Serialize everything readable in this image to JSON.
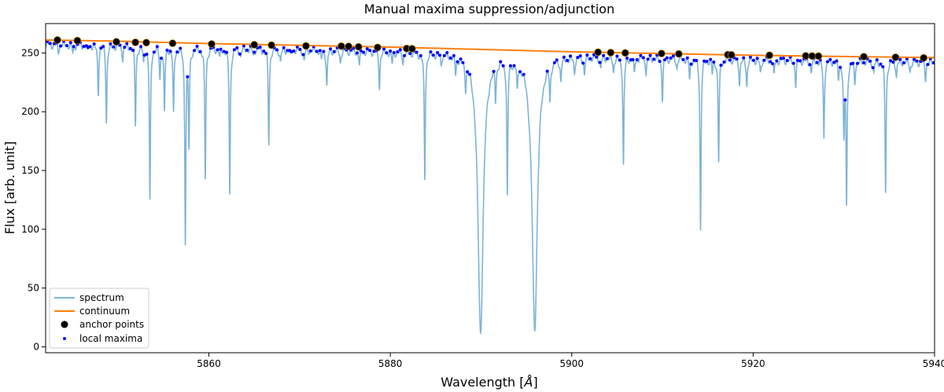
{
  "chart_data": {
    "type": "line",
    "title": "Manual maxima suppression/adjunction",
    "xlabel": "Wavelength [Å]",
    "xlabel_text": "Wavelength [",
    "xlabel_unit": "Å",
    "xlabel_close": "]",
    "ylabel": "Flux [arb. unit]",
    "xlim": [
      5842,
      5940
    ],
    "ylim": [
      -5,
      275
    ],
    "x_ticks": [
      5860,
      5880,
      5900,
      5920,
      5940
    ],
    "y_ticks": [
      0,
      50,
      100,
      150,
      200,
      250
    ],
    "grid": false,
    "legend_position": "lower-left",
    "colors": {
      "spectrum": "#7eb3d8",
      "continuum": "#ff7f0e",
      "anchor": "#000000",
      "anchor_edge": "#b8860b",
      "maxima": "#0000ff"
    },
    "legend": [
      "spectrum",
      "continuum",
      "anchor points",
      "local maxima"
    ],
    "continuum": {
      "x": [
        5842,
        5850,
        5860,
        5870,
        5880,
        5890,
        5900,
        5910,
        5920,
        5930,
        5940
      ],
      "y": [
        261,
        260,
        258,
        256.5,
        255,
        253,
        251,
        249.5,
        248,
        247,
        246
      ]
    },
    "spectrum_absorption_lines": [
      {
        "x": 5843.4,
        "depth": 6
      },
      {
        "x": 5845.0,
        "depth": 7
      },
      {
        "x": 5846.6,
        "depth": 6
      },
      {
        "x": 5847.8,
        "depth": 40
      },
      {
        "x": 5848.7,
        "depth": 64
      },
      {
        "x": 5850.5,
        "depth": 10
      },
      {
        "x": 5851.9,
        "depth": 67
      },
      {
        "x": 5852.8,
        "depth": 13
      },
      {
        "x": 5853.5,
        "depth": 132
      },
      {
        "x": 5854.6,
        "depth": 26
      },
      {
        "x": 5855.1,
        "depth": 55
      },
      {
        "x": 5856.1,
        "depth": 57
      },
      {
        "x": 5857.4,
        "depth": 162
      },
      {
        "x": 5857.8,
        "depth": 82
      },
      {
        "x": 5859.6,
        "depth": 111
      },
      {
        "x": 5861.2,
        "depth": 8
      },
      {
        "x": 5862.3,
        "depth": 124
      },
      {
        "x": 5863.5,
        "depth": 6
      },
      {
        "x": 5864.9,
        "depth": 5
      },
      {
        "x": 5866.6,
        "depth": 80
      },
      {
        "x": 5867.9,
        "depth": 11
      },
      {
        "x": 5869.0,
        "depth": 6
      },
      {
        "x": 5870.5,
        "depth": 10
      },
      {
        "x": 5872.4,
        "depth": 8
      },
      {
        "x": 5873.0,
        "depth": 30
      },
      {
        "x": 5874.5,
        "depth": 10
      },
      {
        "x": 5876.6,
        "depth": 12
      },
      {
        "x": 5878.8,
        "depth": 30
      },
      {
        "x": 5880.2,
        "depth": 10
      },
      {
        "x": 5881.4,
        "depth": 8
      },
      {
        "x": 5883.8,
        "depth": 107
      },
      {
        "x": 5885.6,
        "depth": 8
      },
      {
        "x": 5887.2,
        "depth": 14
      },
      {
        "x": 5888.3,
        "depth": 20
      },
      {
        "x": 5889.95,
        "depth": 236,
        "wide": true
      },
      {
        "x": 5891.6,
        "depth": 28
      },
      {
        "x": 5892.9,
        "depth": 115
      },
      {
        "x": 5894.0,
        "depth": 22
      },
      {
        "x": 5895.92,
        "depth": 232,
        "wide": true
      },
      {
        "x": 5897.6,
        "depth": 30
      },
      {
        "x": 5898.8,
        "depth": 18
      },
      {
        "x": 5900.3,
        "depth": 12
      },
      {
        "x": 5901.4,
        "depth": 14
      },
      {
        "x": 5903.2,
        "depth": 10
      },
      {
        "x": 5904.6,
        "depth": 12
      },
      {
        "x": 5905.7,
        "depth": 91
      },
      {
        "x": 5906.9,
        "depth": 14
      },
      {
        "x": 5908.2,
        "depth": 12
      },
      {
        "x": 5910.0,
        "depth": 35
      },
      {
        "x": 5911.6,
        "depth": 8
      },
      {
        "x": 5913.0,
        "depth": 18
      },
      {
        "x": 5914.2,
        "depth": 145
      },
      {
        "x": 5915.5,
        "depth": 12
      },
      {
        "x": 5916.2,
        "depth": 87
      },
      {
        "x": 5918.5,
        "depth": 20
      },
      {
        "x": 5919.3,
        "depth": 22
      },
      {
        "x": 5920.8,
        "depth": 12
      },
      {
        "x": 5922.3,
        "depth": 14
      },
      {
        "x": 5924.7,
        "depth": 22
      },
      {
        "x": 5926.4,
        "depth": 10
      },
      {
        "x": 5927.8,
        "depth": 66
      },
      {
        "x": 5929.4,
        "depth": 14
      },
      {
        "x": 5930.0,
        "depth": 64
      },
      {
        "x": 5930.3,
        "depth": 120
      },
      {
        "x": 5931.2,
        "depth": 18
      },
      {
        "x": 5933.3,
        "depth": 10
      },
      {
        "x": 5934.6,
        "depth": 110
      },
      {
        "x": 5935.8,
        "depth": 12
      },
      {
        "x": 5937.3,
        "depth": 8
      },
      {
        "x": 5939.0,
        "depth": 14
      }
    ],
    "anchor_points": {
      "x": [
        5843.3,
        5845.5,
        5849.8,
        5851.9,
        5853.1,
        5856.0,
        5860.3,
        5865.0,
        5866.9,
        5870.7,
        5874.6,
        5875.4,
        5876.5,
        5878.6,
        5881.8,
        5882.4,
        5902.9,
        5904.3,
        5905.9,
        5909.9,
        5911.8,
        5917.2,
        5917.6,
        5921.8,
        5925.8,
        5926.5,
        5927.2,
        5932.2,
        5935.7,
        5938.8
      ],
      "y": [
        261,
        260.5,
        259.5,
        259,
        258.8,
        258.2,
        257.6,
        257.0,
        256.6,
        256.0,
        255.8,
        255.6,
        255.2,
        254.7,
        253.8,
        253.6,
        250.6,
        250.3,
        250.0,
        249.5,
        249.2,
        248.5,
        248.4,
        248.0,
        247.5,
        247.4,
        247.3,
        246.8,
        246.3,
        245.8
      ]
    }
  }
}
